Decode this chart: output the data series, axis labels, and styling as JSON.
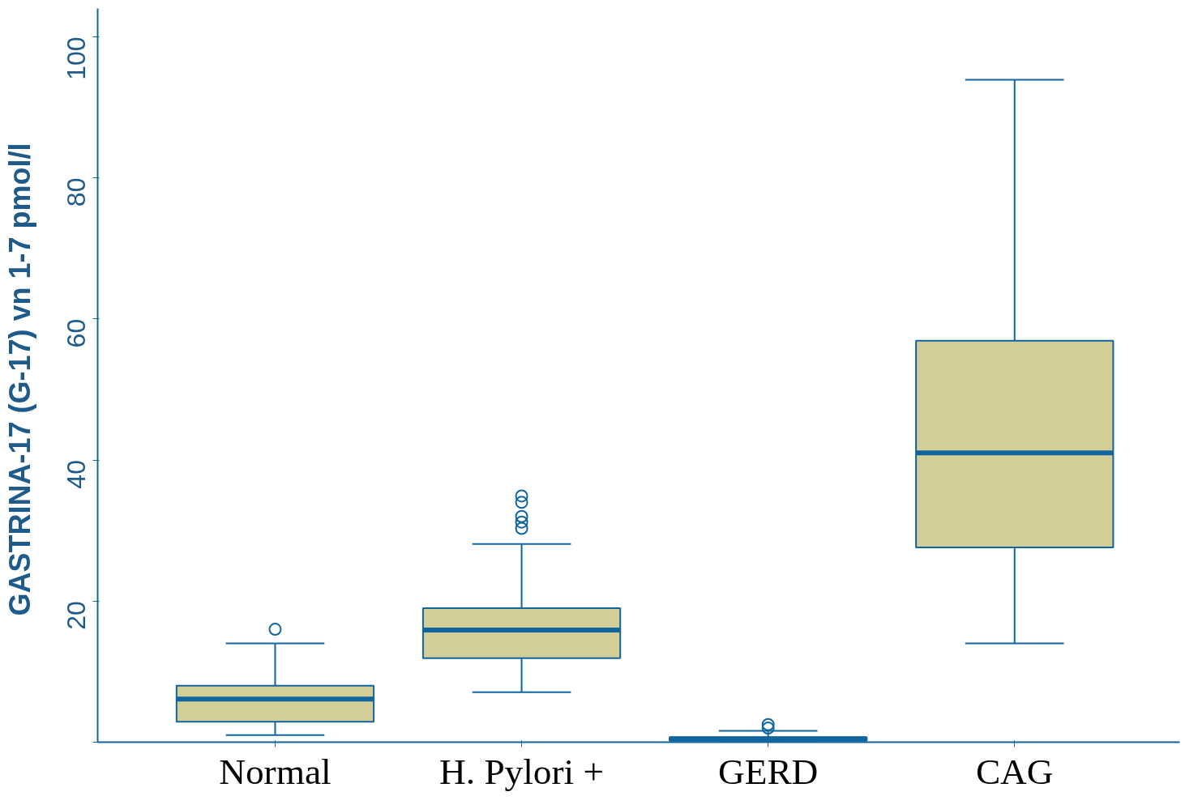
{
  "chart_data": {
    "type": "box",
    "ylabel": "GASTRINA-17  (G-17) vn 1-7 pmol/l",
    "categories": [
      "Normal",
      "H. Pylori +",
      "GERD",
      "CAG"
    ],
    "boxes": [
      {
        "low": 1.0,
        "q1": 2.9,
        "median": 6.1,
        "q3": 8.0,
        "high": 14.0,
        "outliers": [
          16.0
        ]
      },
      {
        "low": 7.1,
        "q1": 11.9,
        "median": 15.9,
        "q3": 19.0,
        "high": 28.1,
        "outliers": [
          30.3,
          31.2,
          32.0,
          34.0,
          34.9
        ]
      },
      {
        "low": 0,
        "q1": 0.2,
        "median": 0.5,
        "q3": 0.7,
        "high": 1.6,
        "outliers": [
          2.0,
          2.5
        ]
      },
      {
        "low": 14.0,
        "q1": 27.6,
        "median": 41.0,
        "q3": 56.9,
        "high": 93.9
      }
    ],
    "color": "#d3cd98",
    "ylim": [
      0,
      104
    ],
    "yticks": [
      {
        "value": 0,
        "label": null
      },
      20,
      40,
      60,
      80,
      100
    ],
    "grid": false,
    "marker": "circle"
  }
}
